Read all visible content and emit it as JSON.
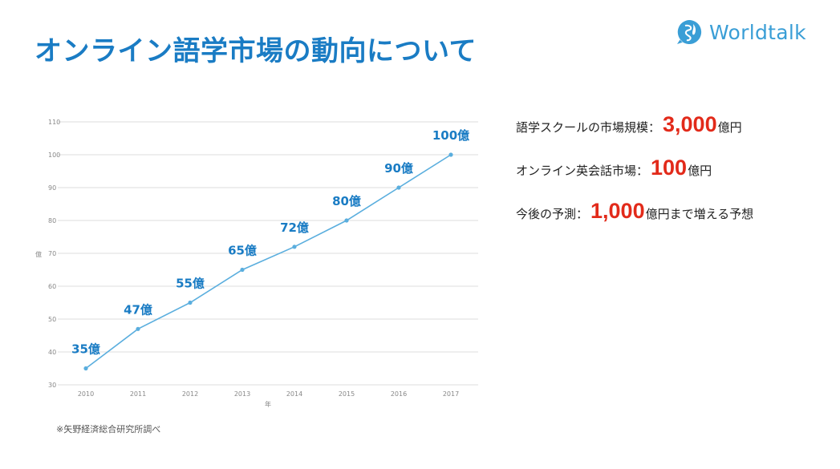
{
  "header": {
    "title": "オンライン語学市場の動向について"
  },
  "logo": {
    "text": "Worldtalk",
    "color": "#3a9ed6",
    "icon": "globe-speech-bubble-icon"
  },
  "chart_data": {
    "type": "line",
    "x": [
      "2010",
      "2011",
      "2012",
      "2013",
      "2014",
      "2015",
      "2016",
      "2017"
    ],
    "series": [
      {
        "values": [
          35,
          47,
          55,
          65,
          72,
          80,
          90,
          100
        ],
        "data_labels": [
          "35億",
          "47億",
          "55億",
          "65億",
          "72億",
          "80億",
          "90億",
          "100億"
        ]
      }
    ],
    "ylim": [
      30,
      110
    ],
    "yticks": [
      "30",
      "40",
      "50",
      "60",
      "70",
      "80",
      "90",
      "100",
      "110"
    ],
    "xlabel": "年",
    "ylabel": "億",
    "grid": true,
    "line_color": "#5aaede",
    "label_color": "#1a7cc4"
  },
  "stats": [
    {
      "prefix": "語学スクールの市場規模：",
      "value": "3,000",
      "suffix": "億円"
    },
    {
      "prefix": "オンライン英会話市場：",
      "value": "100",
      "suffix": "億円"
    },
    {
      "prefix": "今後の予測：",
      "value": "1,000",
      "suffix": "億円まで増える予想"
    }
  ],
  "source": "※矢野経済総合研究所調べ"
}
